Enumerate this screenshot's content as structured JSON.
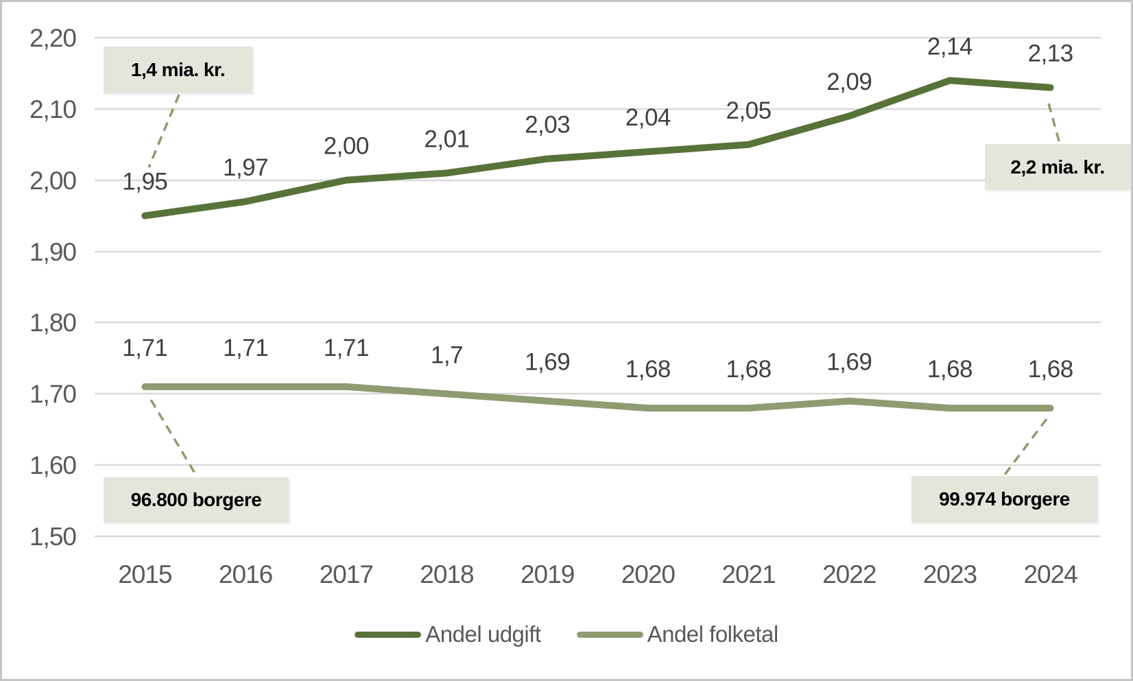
{
  "chart_data": {
    "type": "line",
    "title": "",
    "categories": [
      "2015",
      "2016",
      "2017",
      "2018",
      "2019",
      "2020",
      "2021",
      "2022",
      "2023",
      "2024"
    ],
    "series": [
      {
        "name": "Andel udgift",
        "color": "#587339",
        "values": [
          1.95,
          1.97,
          2.0,
          2.01,
          2.03,
          2.04,
          2.05,
          2.09,
          2.14,
          2.13
        ],
        "labels": [
          "1,95",
          "1,97",
          "2,00",
          "2,01",
          "2,03",
          "2,04",
          "2,05",
          "2,09",
          "2,14",
          "2,13"
        ]
      },
      {
        "name": "Andel folketal",
        "color": "#8f9c72",
        "values": [
          1.71,
          1.71,
          1.71,
          1.7,
          1.69,
          1.68,
          1.68,
          1.69,
          1.68,
          1.68
        ],
        "labels": [
          "1,71",
          "1,71",
          "1,71",
          "1,7",
          "1,69",
          "1,68",
          "1,68",
          "1,69",
          "1,68",
          "1,68"
        ]
      }
    ],
    "ylim": [
      1.5,
      2.2
    ],
    "y_ticks": [
      {
        "label": "2,20",
        "value": 2.2
      },
      {
        "label": "2,10",
        "value": 2.1
      },
      {
        "label": "2,00",
        "value": 2.0
      },
      {
        "label": "1,90",
        "value": 1.9
      },
      {
        "label": "1,80",
        "value": 1.8
      },
      {
        "label": "1,70",
        "value": 1.7
      },
      {
        "label": "1,60",
        "value": 1.6
      },
      {
        "label": "1,50",
        "value": 1.5
      }
    ],
    "grid": true,
    "legend_position": "bottom",
    "annotations": [
      {
        "text": "1,4 mia. kr."
      },
      {
        "text": "2,2 mia. kr."
      },
      {
        "text": "96.800 borgere"
      },
      {
        "text": "99.974 borgere"
      }
    ],
    "colors": {
      "grid": "#d9d9d9",
      "axis_text": "#595959",
      "data_label_text": "#404040",
      "annotation_bg": "#e5e5dc",
      "annotation_text": "#000000",
      "callout_line": "#8d9c6e",
      "canvas_border": "#c4c4c4"
    }
  }
}
